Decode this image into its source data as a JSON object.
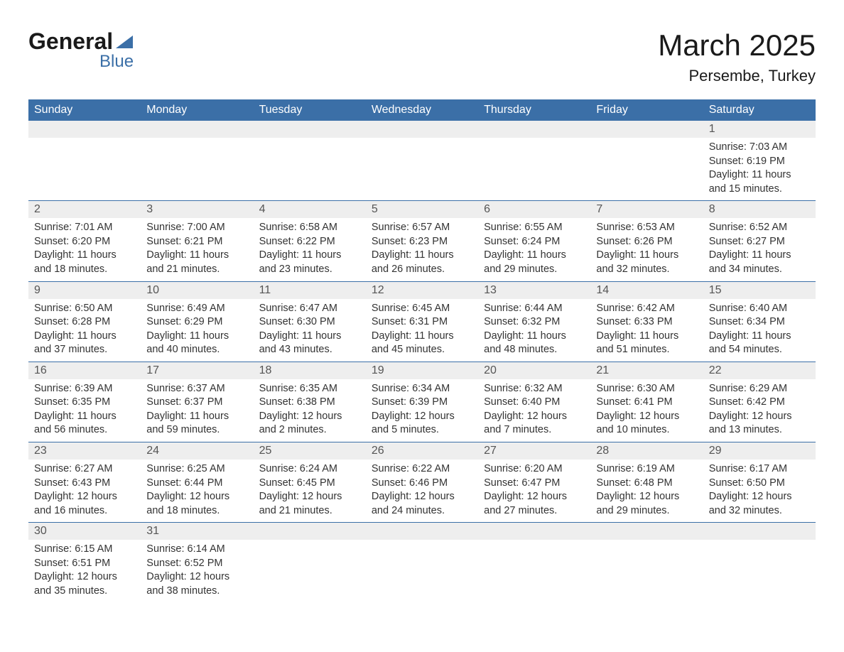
{
  "logo": {
    "main": "General",
    "sub": "Blue"
  },
  "title": "March 2025",
  "location": "Persembe, Turkey",
  "weekdays": [
    "Sunday",
    "Monday",
    "Tuesday",
    "Wednesday",
    "Thursday",
    "Friday",
    "Saturday"
  ],
  "colors": {
    "header_bg": "#3b6fa7",
    "header_text": "#ffffff",
    "daynum_bg": "#eeeeee",
    "text": "#333333"
  },
  "weeks": [
    [
      null,
      null,
      null,
      null,
      null,
      null,
      {
        "day": "1",
        "sunrise": "Sunrise: 7:03 AM",
        "sunset": "Sunset: 6:19 PM",
        "daylight1": "Daylight: 11 hours",
        "daylight2": "and 15 minutes."
      }
    ],
    [
      {
        "day": "2",
        "sunrise": "Sunrise: 7:01 AM",
        "sunset": "Sunset: 6:20 PM",
        "daylight1": "Daylight: 11 hours",
        "daylight2": "and 18 minutes."
      },
      {
        "day": "3",
        "sunrise": "Sunrise: 7:00 AM",
        "sunset": "Sunset: 6:21 PM",
        "daylight1": "Daylight: 11 hours",
        "daylight2": "and 21 minutes."
      },
      {
        "day": "4",
        "sunrise": "Sunrise: 6:58 AM",
        "sunset": "Sunset: 6:22 PM",
        "daylight1": "Daylight: 11 hours",
        "daylight2": "and 23 minutes."
      },
      {
        "day": "5",
        "sunrise": "Sunrise: 6:57 AM",
        "sunset": "Sunset: 6:23 PM",
        "daylight1": "Daylight: 11 hours",
        "daylight2": "and 26 minutes."
      },
      {
        "day": "6",
        "sunrise": "Sunrise: 6:55 AM",
        "sunset": "Sunset: 6:24 PM",
        "daylight1": "Daylight: 11 hours",
        "daylight2": "and 29 minutes."
      },
      {
        "day": "7",
        "sunrise": "Sunrise: 6:53 AM",
        "sunset": "Sunset: 6:26 PM",
        "daylight1": "Daylight: 11 hours",
        "daylight2": "and 32 minutes."
      },
      {
        "day": "8",
        "sunrise": "Sunrise: 6:52 AM",
        "sunset": "Sunset: 6:27 PM",
        "daylight1": "Daylight: 11 hours",
        "daylight2": "and 34 minutes."
      }
    ],
    [
      {
        "day": "9",
        "sunrise": "Sunrise: 6:50 AM",
        "sunset": "Sunset: 6:28 PM",
        "daylight1": "Daylight: 11 hours",
        "daylight2": "and 37 minutes."
      },
      {
        "day": "10",
        "sunrise": "Sunrise: 6:49 AM",
        "sunset": "Sunset: 6:29 PM",
        "daylight1": "Daylight: 11 hours",
        "daylight2": "and 40 minutes."
      },
      {
        "day": "11",
        "sunrise": "Sunrise: 6:47 AM",
        "sunset": "Sunset: 6:30 PM",
        "daylight1": "Daylight: 11 hours",
        "daylight2": "and 43 minutes."
      },
      {
        "day": "12",
        "sunrise": "Sunrise: 6:45 AM",
        "sunset": "Sunset: 6:31 PM",
        "daylight1": "Daylight: 11 hours",
        "daylight2": "and 45 minutes."
      },
      {
        "day": "13",
        "sunrise": "Sunrise: 6:44 AM",
        "sunset": "Sunset: 6:32 PM",
        "daylight1": "Daylight: 11 hours",
        "daylight2": "and 48 minutes."
      },
      {
        "day": "14",
        "sunrise": "Sunrise: 6:42 AM",
        "sunset": "Sunset: 6:33 PM",
        "daylight1": "Daylight: 11 hours",
        "daylight2": "and 51 minutes."
      },
      {
        "day": "15",
        "sunrise": "Sunrise: 6:40 AM",
        "sunset": "Sunset: 6:34 PM",
        "daylight1": "Daylight: 11 hours",
        "daylight2": "and 54 minutes."
      }
    ],
    [
      {
        "day": "16",
        "sunrise": "Sunrise: 6:39 AM",
        "sunset": "Sunset: 6:35 PM",
        "daylight1": "Daylight: 11 hours",
        "daylight2": "and 56 minutes."
      },
      {
        "day": "17",
        "sunrise": "Sunrise: 6:37 AM",
        "sunset": "Sunset: 6:37 PM",
        "daylight1": "Daylight: 11 hours",
        "daylight2": "and 59 minutes."
      },
      {
        "day": "18",
        "sunrise": "Sunrise: 6:35 AM",
        "sunset": "Sunset: 6:38 PM",
        "daylight1": "Daylight: 12 hours",
        "daylight2": "and 2 minutes."
      },
      {
        "day": "19",
        "sunrise": "Sunrise: 6:34 AM",
        "sunset": "Sunset: 6:39 PM",
        "daylight1": "Daylight: 12 hours",
        "daylight2": "and 5 minutes."
      },
      {
        "day": "20",
        "sunrise": "Sunrise: 6:32 AM",
        "sunset": "Sunset: 6:40 PM",
        "daylight1": "Daylight: 12 hours",
        "daylight2": "and 7 minutes."
      },
      {
        "day": "21",
        "sunrise": "Sunrise: 6:30 AM",
        "sunset": "Sunset: 6:41 PM",
        "daylight1": "Daylight: 12 hours",
        "daylight2": "and 10 minutes."
      },
      {
        "day": "22",
        "sunrise": "Sunrise: 6:29 AM",
        "sunset": "Sunset: 6:42 PM",
        "daylight1": "Daylight: 12 hours",
        "daylight2": "and 13 minutes."
      }
    ],
    [
      {
        "day": "23",
        "sunrise": "Sunrise: 6:27 AM",
        "sunset": "Sunset: 6:43 PM",
        "daylight1": "Daylight: 12 hours",
        "daylight2": "and 16 minutes."
      },
      {
        "day": "24",
        "sunrise": "Sunrise: 6:25 AM",
        "sunset": "Sunset: 6:44 PM",
        "daylight1": "Daylight: 12 hours",
        "daylight2": "and 18 minutes."
      },
      {
        "day": "25",
        "sunrise": "Sunrise: 6:24 AM",
        "sunset": "Sunset: 6:45 PM",
        "daylight1": "Daylight: 12 hours",
        "daylight2": "and 21 minutes."
      },
      {
        "day": "26",
        "sunrise": "Sunrise: 6:22 AM",
        "sunset": "Sunset: 6:46 PM",
        "daylight1": "Daylight: 12 hours",
        "daylight2": "and 24 minutes."
      },
      {
        "day": "27",
        "sunrise": "Sunrise: 6:20 AM",
        "sunset": "Sunset: 6:47 PM",
        "daylight1": "Daylight: 12 hours",
        "daylight2": "and 27 minutes."
      },
      {
        "day": "28",
        "sunrise": "Sunrise: 6:19 AM",
        "sunset": "Sunset: 6:48 PM",
        "daylight1": "Daylight: 12 hours",
        "daylight2": "and 29 minutes."
      },
      {
        "day": "29",
        "sunrise": "Sunrise: 6:17 AM",
        "sunset": "Sunset: 6:50 PM",
        "daylight1": "Daylight: 12 hours",
        "daylight2": "and 32 minutes."
      }
    ],
    [
      {
        "day": "30",
        "sunrise": "Sunrise: 6:15 AM",
        "sunset": "Sunset: 6:51 PM",
        "daylight1": "Daylight: 12 hours",
        "daylight2": "and 35 minutes."
      },
      {
        "day": "31",
        "sunrise": "Sunrise: 6:14 AM",
        "sunset": "Sunset: 6:52 PM",
        "daylight1": "Daylight: 12 hours",
        "daylight2": "and 38 minutes."
      },
      null,
      null,
      null,
      null,
      null
    ]
  ]
}
